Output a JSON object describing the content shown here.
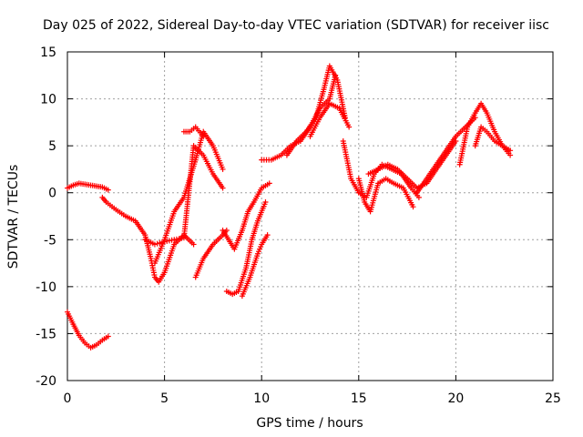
{
  "chart_data": {
    "type": "scatter",
    "title": "Day 025 of 2022, Sidereal Day-to-day VTEC variation (SDTVAR) for receiver iisc",
    "xlabel": "GPS time / hours",
    "ylabel": "SDTVAR / TECUs",
    "xlim": [
      0,
      25
    ],
    "ylim": [
      -20,
      15
    ],
    "xticks": [
      0,
      5,
      10,
      15,
      20,
      25
    ],
    "yticks": [
      -20,
      -15,
      -10,
      -5,
      0,
      5,
      10,
      15
    ],
    "grid": true,
    "marker": "+",
    "color": "#ff0000",
    "series": [
      {
        "x": [
          0.0,
          0.3,
          0.6,
          0.9,
          1.2,
          1.5,
          1.8,
          2.1
        ],
        "y": [
          0.5,
          0.8,
          1.0,
          0.9,
          0.8,
          0.7,
          0.6,
          0.3
        ]
      },
      {
        "x": [
          0.0,
          0.3,
          0.6,
          0.9,
          1.2,
          1.5,
          1.8,
          2.1
        ],
        "y": [
          -12.7,
          -14.0,
          -15.2,
          -16.0,
          -16.5,
          -16.2,
          -15.7,
          -15.3
        ]
      },
      {
        "x": [
          1.8,
          2.0,
          2.5,
          3.0,
          3.5,
          4.0,
          4.3,
          4.5,
          4.7,
          5.0,
          5.5,
          6.0,
          6.5
        ],
        "y": [
          -0.5,
          -1.0,
          -1.8,
          -2.5,
          -3.0,
          -4.5,
          -7.0,
          -9.0,
          -9.5,
          -8.5,
          -5.5,
          -4.5,
          -5.5
        ]
      },
      {
        "x": [
          4.0,
          4.5,
          5.0,
          5.5,
          6.0,
          6.5,
          7.0,
          7.5,
          8.0
        ],
        "y": [
          -5.0,
          -5.5,
          -5.2,
          -5.0,
          -4.8,
          5.0,
          4.0,
          2.0,
          0.5
        ]
      },
      {
        "x": [
          4.5,
          5.0,
          5.5,
          6.0,
          6.3,
          6.6,
          7.0,
          7.5,
          8.0
        ],
        "y": [
          -7.5,
          -5.0,
          -2.0,
          -0.5,
          1.5,
          3.5,
          6.5,
          5.0,
          2.5
        ]
      },
      {
        "x": [
          6.0,
          6.3,
          6.6,
          7.0
        ],
        "y": [
          6.5,
          6.5,
          7.0,
          6.0
        ]
      },
      {
        "x": [
          6.6,
          7.0,
          7.5,
          8.0,
          8.2
        ],
        "y": [
          -9.0,
          -7.0,
          -5.5,
          -4.5,
          -4.0
        ]
      },
      {
        "x": [
          8.0,
          8.3,
          8.6,
          9.0,
          9.3,
          9.6,
          10.0,
          10.4
        ],
        "y": [
          -4.0,
          -5.0,
          -6.0,
          -4.0,
          -2.0,
          -1.0,
          0.5,
          1.0
        ]
      },
      {
        "x": [
          8.2,
          8.5,
          8.8,
          9.2,
          9.5,
          9.8,
          10.2
        ],
        "y": [
          -10.5,
          -10.8,
          -10.5,
          -8.0,
          -5.0,
          -3.0,
          -1.0
        ]
      },
      {
        "x": [
          9.0,
          9.4,
          9.8,
          10.0,
          10.3
        ],
        "y": [
          -11.0,
          -9.0,
          -6.5,
          -5.5,
          -4.5
        ]
      },
      {
        "x": [
          10.0,
          10.5,
          11.0,
          11.5,
          12.0,
          12.5,
          13.0,
          13.5,
          13.8
        ],
        "y": [
          3.5,
          3.5,
          4.0,
          5.0,
          5.5,
          7.0,
          9.0,
          10.0,
          12.5
        ]
      },
      {
        "x": [
          11.3,
          11.8,
          12.3,
          12.8,
          13.2,
          13.5,
          13.9,
          14.3
        ],
        "y": [
          4.0,
          5.5,
          6.5,
          8.0,
          11.0,
          13.5,
          12.0,
          8.0
        ]
      },
      {
        "x": [
          12.5,
          13.0,
          13.5,
          14.0,
          14.5
        ],
        "y": [
          6.0,
          8.0,
          9.5,
          9.0,
          7.0
        ]
      },
      {
        "x": [
          14.2,
          14.6,
          15.0,
          15.4,
          15.8,
          16.2,
          16.7,
          17.2,
          17.7,
          18.1
        ],
        "y": [
          5.5,
          1.5,
          0.0,
          -0.5,
          2.0,
          3.0,
          2.5,
          2.0,
          0.5,
          -0.5
        ]
      },
      {
        "x": [
          15.0,
          15.3,
          15.6,
          16.0,
          16.4,
          16.8,
          17.3,
          17.8
        ],
        "y": [
          1.5,
          -1.0,
          -2.0,
          1.0,
          1.5,
          1.0,
          0.5,
          -1.5
        ]
      },
      {
        "x": [
          15.5,
          16.0,
          16.5,
          17.0,
          17.5,
          18.0,
          18.5,
          19.0,
          19.5,
          20.0
        ],
        "y": [
          2.0,
          2.5,
          3.0,
          2.5,
          1.5,
          0.5,
          1.0,
          2.5,
          4.0,
          5.5
        ]
      },
      {
        "x": [
          18.0,
          18.5,
          19.0,
          19.5,
          20.0,
          20.5,
          21.0
        ],
        "y": [
          0.0,
          1.5,
          3.0,
          4.5,
          6.0,
          7.0,
          8.0
        ]
      },
      {
        "x": [
          20.2,
          20.6,
          21.0,
          21.3,
          21.6,
          22.0,
          22.4,
          22.8
        ],
        "y": [
          3.0,
          7.0,
          8.5,
          9.5,
          8.5,
          6.5,
          5.0,
          4.5
        ]
      },
      {
        "x": [
          21.0,
          21.3,
          21.6,
          22.0,
          22.4,
          22.8
        ],
        "y": [
          5.0,
          7.0,
          6.5,
          5.5,
          5.0,
          4.0
        ]
      }
    ]
  }
}
